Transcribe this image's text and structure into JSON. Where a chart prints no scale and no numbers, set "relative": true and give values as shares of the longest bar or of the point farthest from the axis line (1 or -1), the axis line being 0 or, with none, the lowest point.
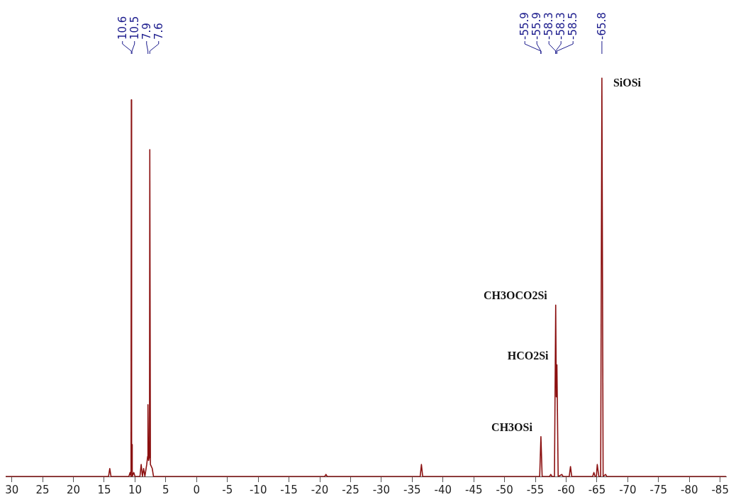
{
  "chart_data": {
    "type": "line",
    "relative": true,
    "color": "#8b1010",
    "marker": "none",
    "line_style": "solid",
    "tick_labels": "x",
    "grid": false,
    "xlim": [
      31,
      -86
    ],
    "xticks": [
      30,
      25,
      20,
      15,
      10,
      5,
      0,
      -5,
      -10,
      -15,
      -20,
      -25,
      -30,
      -35,
      -40,
      -45,
      -50,
      -55,
      -60,
      -65,
      -70,
      -75,
      -80,
      -85
    ],
    "x": [
      31,
      14.3,
      14.1,
      13.9,
      11,
      10.8,
      10.65,
      10.6,
      10.55,
      10.5,
      10.45,
      10.2,
      10.0,
      9.2,
      9.0,
      8.8,
      8.6,
      8.4,
      8.1,
      7.95,
      7.9,
      7.8,
      7.65,
      7.6,
      7.5,
      7.2,
      7.0,
      -20.8,
      -21,
      -21.2,
      -36.3,
      -36.5,
      -36.7,
      -55.7,
      -55.9,
      -56.1,
      -57.3,
      -57.5,
      -57.7,
      -58.1,
      -58.3,
      -58.4,
      -58.5,
      -58.7,
      -59.3,
      -59.5,
      -60.5,
      -60.7,
      -60.9,
      -64.3,
      -64.5,
      -64.7,
      -64.9,
      -65.05,
      -65.3,
      -65.6,
      -65.8,
      -66,
      -66.4,
      -66.6,
      -86
    ],
    "values": [
      0,
      0,
      0.02,
      0,
      0,
      0.01,
      0,
      0.945,
      0.02,
      0.08,
      0,
      0.01,
      0,
      0,
      0.03,
      0,
      0.02,
      0,
      0.03,
      0.05,
      0.18,
      0.04,
      0.05,
      0.82,
      0.03,
      0.02,
      0,
      0,
      0.005,
      0,
      0,
      0.03,
      0,
      0,
      0.1,
      0,
      0,
      0.005,
      0,
      0,
      0.43,
      0.2,
      0.28,
      0,
      0.005,
      0,
      0,
      0.025,
      0,
      0,
      0.01,
      0,
      0,
      0.03,
      0,
      0,
      1,
      0,
      0.005,
      0,
      0
    ],
    "annotations": [
      {
        "text": "10.6",
        "x": 10.6
      },
      {
        "text": "10.5",
        "x": 10.5
      },
      {
        "text": "7.9",
        "x": 7.9
      },
      {
        "text": "7.6",
        "x": 7.6
      },
      {
        "text": "-55.9",
        "x": -55.9
      },
      {
        "text": "-55.9",
        "x": -55.9
      },
      {
        "text": "-58.3",
        "x": -58.3
      },
      {
        "text": "-58.3",
        "x": -58.3
      },
      {
        "text": "-58.5",
        "x": -58.5
      },
      {
        "text": "-65.8",
        "x": -65.8
      },
      {
        "text": "CH3OSi",
        "x": -55.9,
        "y": 0.1
      },
      {
        "text": "HCO2Si",
        "x": -58.5,
        "y": 0.28
      },
      {
        "text": "CH3OCO2Si",
        "x": -58.3,
        "y": 0.43
      },
      {
        "text": "SiOSi",
        "x": -65.8,
        "y": 1
      }
    ]
  }
}
